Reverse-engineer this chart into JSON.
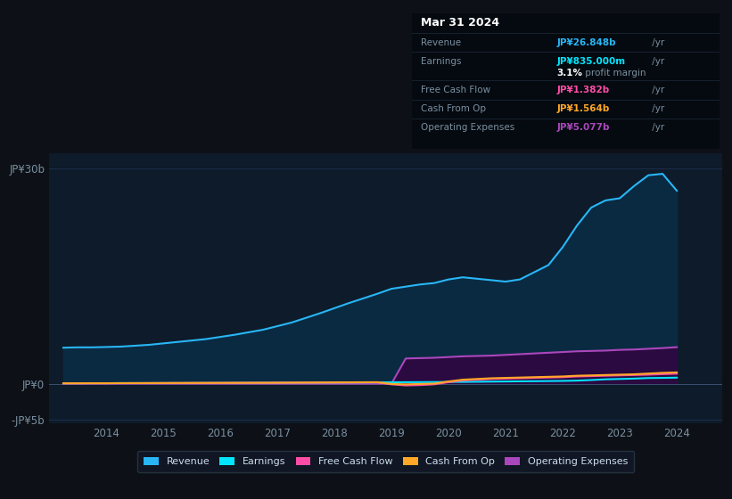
{
  "bg_color": "#0d1117",
  "plot_bg_color": "#0d1b2a",
  "grid_color": "#1e3050",
  "text_color": "#7a8fa0",
  "title_color": "#ffffff",
  "years": [
    2013.25,
    2013.5,
    2013.75,
    2014.0,
    2014.25,
    2014.75,
    2015.25,
    2015.75,
    2016.25,
    2016.75,
    2017.25,
    2017.75,
    2018.25,
    2018.75,
    2019.0,
    2019.25,
    2019.5,
    2019.75,
    2020.0,
    2020.25,
    2020.5,
    2020.75,
    2021.0,
    2021.25,
    2021.5,
    2021.75,
    2022.0,
    2022.25,
    2022.5,
    2022.75,
    2023.0,
    2023.25,
    2023.5,
    2023.75,
    2024.0
  ],
  "revenue": [
    5.0,
    5.05,
    5.05,
    5.1,
    5.15,
    5.4,
    5.8,
    6.2,
    6.8,
    7.5,
    8.5,
    9.8,
    11.2,
    12.5,
    13.2,
    13.5,
    13.8,
    14.0,
    14.5,
    14.8,
    14.6,
    14.4,
    14.2,
    14.5,
    15.5,
    16.5,
    19.0,
    22.0,
    24.5,
    25.5,
    25.8,
    27.5,
    29.0,
    29.2,
    26.848
  ],
  "revenue_color": "#29b6f6",
  "revenue_fill_color": "#0a2a42",
  "earnings": [
    0.05,
    0.05,
    0.06,
    0.06,
    0.07,
    0.07,
    0.08,
    0.09,
    0.1,
    0.11,
    0.12,
    0.14,
    0.16,
    0.18,
    0.19,
    0.2,
    0.21,
    0.22,
    0.23,
    0.24,
    0.26,
    0.28,
    0.3,
    0.32,
    0.34,
    0.36,
    0.38,
    0.42,
    0.5,
    0.6,
    0.65,
    0.7,
    0.78,
    0.8,
    0.835
  ],
  "earnings_color": "#00e5ff",
  "free_cash_flow": [
    0.04,
    0.04,
    0.05,
    0.05,
    0.06,
    0.07,
    0.08,
    0.09,
    0.1,
    0.11,
    0.12,
    0.14,
    0.16,
    0.18,
    -0.1,
    -0.25,
    -0.2,
    -0.1,
    0.2,
    0.45,
    0.55,
    0.65,
    0.7,
    0.75,
    0.8,
    0.85,
    0.9,
    1.0,
    1.05,
    1.1,
    1.15,
    1.2,
    1.25,
    1.32,
    1.382
  ],
  "free_cash_flow_color": "#ff4da6",
  "cash_from_op": [
    0.05,
    0.05,
    0.06,
    0.06,
    0.07,
    0.08,
    0.09,
    0.1,
    0.11,
    0.12,
    0.14,
    0.16,
    0.18,
    0.2,
    -0.05,
    -0.1,
    -0.05,
    0.0,
    0.3,
    0.55,
    0.65,
    0.75,
    0.8,
    0.85,
    0.9,
    0.95,
    1.0,
    1.1,
    1.15,
    1.2,
    1.25,
    1.3,
    1.4,
    1.5,
    1.564
  ],
  "cash_from_op_color": "#ffa726",
  "op_expenses": [
    0.0,
    0.0,
    0.0,
    0.0,
    0.0,
    0.0,
    0.0,
    0.0,
    0.0,
    0.0,
    0.0,
    0.0,
    0.0,
    0.0,
    0.0,
    3.5,
    3.55,
    3.6,
    3.7,
    3.8,
    3.85,
    3.9,
    4.0,
    4.1,
    4.2,
    4.3,
    4.4,
    4.5,
    4.55,
    4.6,
    4.7,
    4.75,
    4.85,
    4.95,
    5.077
  ],
  "op_expenses_color": "#ab47bc",
  "op_expenses_fill_color": "#2a0a40",
  "ylim": [
    -5.5,
    32
  ],
  "yticks": [
    -5,
    0,
    30
  ],
  "ytick_labels": [
    "-JP¥5b",
    "JP¥0",
    "JP¥30b"
  ],
  "xlim": [
    2013.0,
    2024.8
  ],
  "xticks": [
    2014,
    2015,
    2016,
    2017,
    2018,
    2019,
    2020,
    2021,
    2022,
    2023,
    2024
  ],
  "legend_labels": [
    "Revenue",
    "Earnings",
    "Free Cash Flow",
    "Cash From Op",
    "Operating Expenses"
  ],
  "legend_colors": [
    "#29b6f6",
    "#00e5ff",
    "#ff4da6",
    "#ffa726",
    "#ab47bc"
  ],
  "tooltip_title": "Mar 31 2024",
  "tooltip_rows": [
    {
      "label": "Revenue",
      "value": "JP¥26.848b",
      "value_color": "#29b6f6",
      "suffix": " /yr"
    },
    {
      "label": "Earnings",
      "value": "JP¥835.000m",
      "value_color": "#00e5ff",
      "suffix": " /yr",
      "extra": "3.1% profit margin"
    },
    {
      "label": "Free Cash Flow",
      "value": "JP¥1.382b",
      "value_color": "#ff4da6",
      "suffix": " /yr"
    },
    {
      "label": "Cash From Op",
      "value": "JP¥1.564b",
      "value_color": "#ffa726",
      "suffix": " /yr"
    },
    {
      "label": "Operating Expenses",
      "value": "JP¥5.077b",
      "value_color": "#ab47bc",
      "suffix": " /yr"
    }
  ]
}
